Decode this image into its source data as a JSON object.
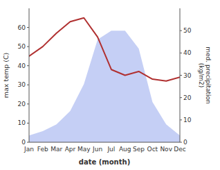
{
  "chart_data": {
    "type": "line",
    "xlabel": "date (month)",
    "ylabel": "max temp (C)",
    "y2label": "med. precipitation\n(kg/m2)",
    "categories": [
      "Jan",
      "Feb",
      "Mar",
      "Apr",
      "May",
      "Jun",
      "Jul",
      "Aug",
      "Sep",
      "Oct",
      "Nov",
      "Dec"
    ],
    "series": [
      {
        "type": "area",
        "axis": "y2",
        "color": "#c5cff5",
        "values": [
          3,
          5,
          8,
          14,
          26,
          46,
          50,
          50,
          42,
          18,
          8,
          3
        ]
      },
      {
        "type": "line",
        "color": "#b03030",
        "values": [
          45,
          50,
          57,
          63,
          65,
          55,
          38,
          35,
          37,
          33,
          32,
          34
        ]
      }
    ],
    "ylim": [
      0,
      70
    ],
    "yticks": [
      0,
      10,
      20,
      30,
      40,
      50,
      60
    ],
    "y2lim": [
      0,
      60
    ],
    "y2ticks": [
      0,
      10,
      20,
      30,
      40,
      50
    ],
    "grid": false
  }
}
